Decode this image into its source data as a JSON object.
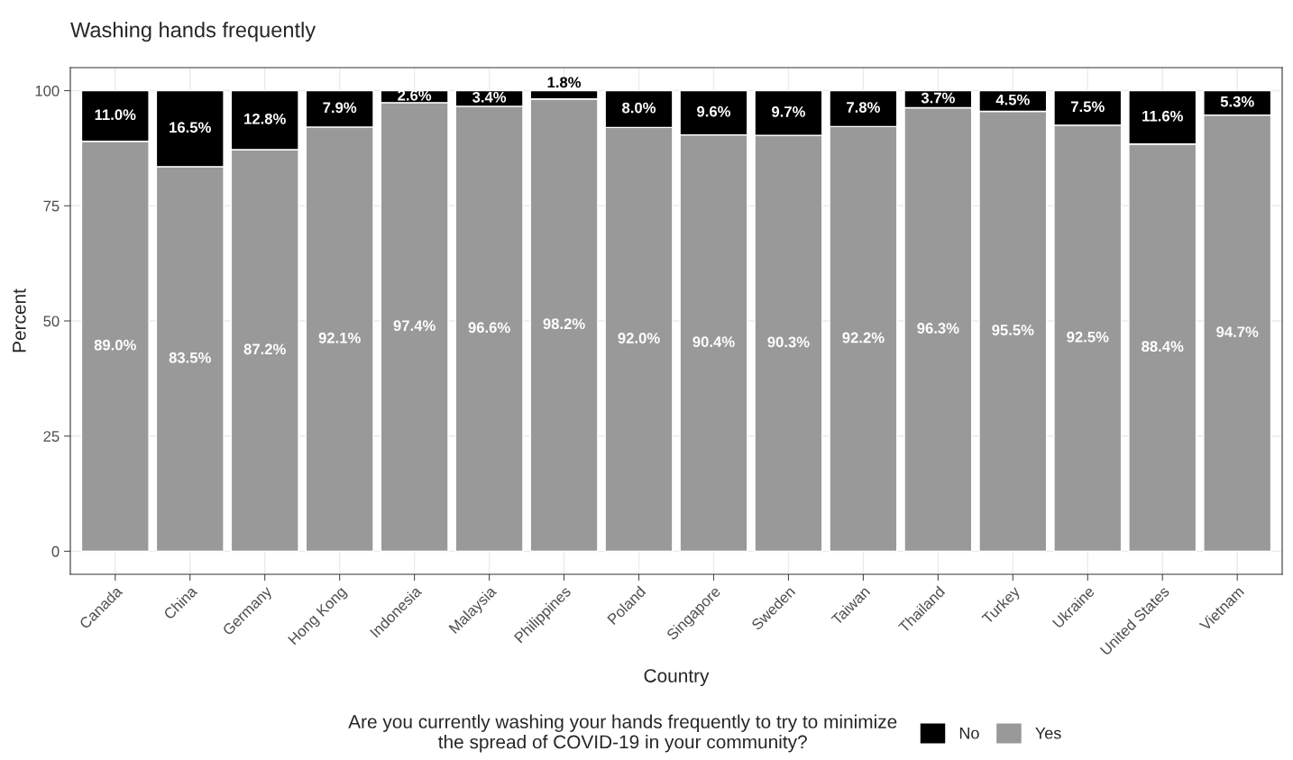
{
  "chart_data": {
    "type": "bar",
    "title": "Washing hands frequently",
    "xlabel": "Country",
    "ylabel": "Percent",
    "legend_title": "Are you currently washing your hands frequently to try to minimize\nthe spread of COVID-19 in your community?",
    "categories": [
      "Canada",
      "China",
      "Germany",
      "Hong Kong",
      "Indonesia",
      "Malaysia",
      "Philippines",
      "Poland",
      "Singapore",
      "Sweden",
      "Taiwan",
      "Thailand",
      "Turkey",
      "Ukraine",
      "United States",
      "Vietnam"
    ],
    "stacked": true,
    "series": [
      {
        "name": "Yes",
        "color": "#999999",
        "values": [
          89.0,
          83.5,
          87.2,
          92.1,
          97.4,
          96.6,
          98.2,
          92.0,
          90.4,
          90.3,
          92.2,
          96.3,
          95.5,
          92.5,
          88.4,
          94.7
        ],
        "value_labels": [
          "89.0%",
          "83.5%",
          "87.2%",
          "92.1%",
          "97.4%",
          "96.6%",
          "98.2%",
          "92.0%",
          "90.4%",
          "90.3%",
          "92.2%",
          "96.3%",
          "95.5%",
          "92.5%",
          "88.4%",
          "94.7%"
        ]
      },
      {
        "name": "No",
        "color": "#000000",
        "values": [
          11.0,
          16.5,
          12.8,
          7.9,
          2.6,
          3.4,
          1.8,
          8.0,
          9.6,
          9.7,
          7.8,
          3.7,
          4.5,
          7.5,
          11.6,
          5.3
        ],
        "value_labels": [
          "11.0%",
          "16.5%",
          "12.8%",
          "7.9%",
          "2.6%",
          "3.4%",
          "1.8%",
          "8.0%",
          "9.6%",
          "9.7%",
          "7.8%",
          "3.7%",
          "4.5%",
          "7.5%",
          "11.6%",
          "5.3%"
        ]
      }
    ],
    "ylim": [
      -5,
      105
    ],
    "yticks": [
      0,
      25,
      50,
      75,
      100
    ],
    "grid": true,
    "legend": "bottom"
  }
}
